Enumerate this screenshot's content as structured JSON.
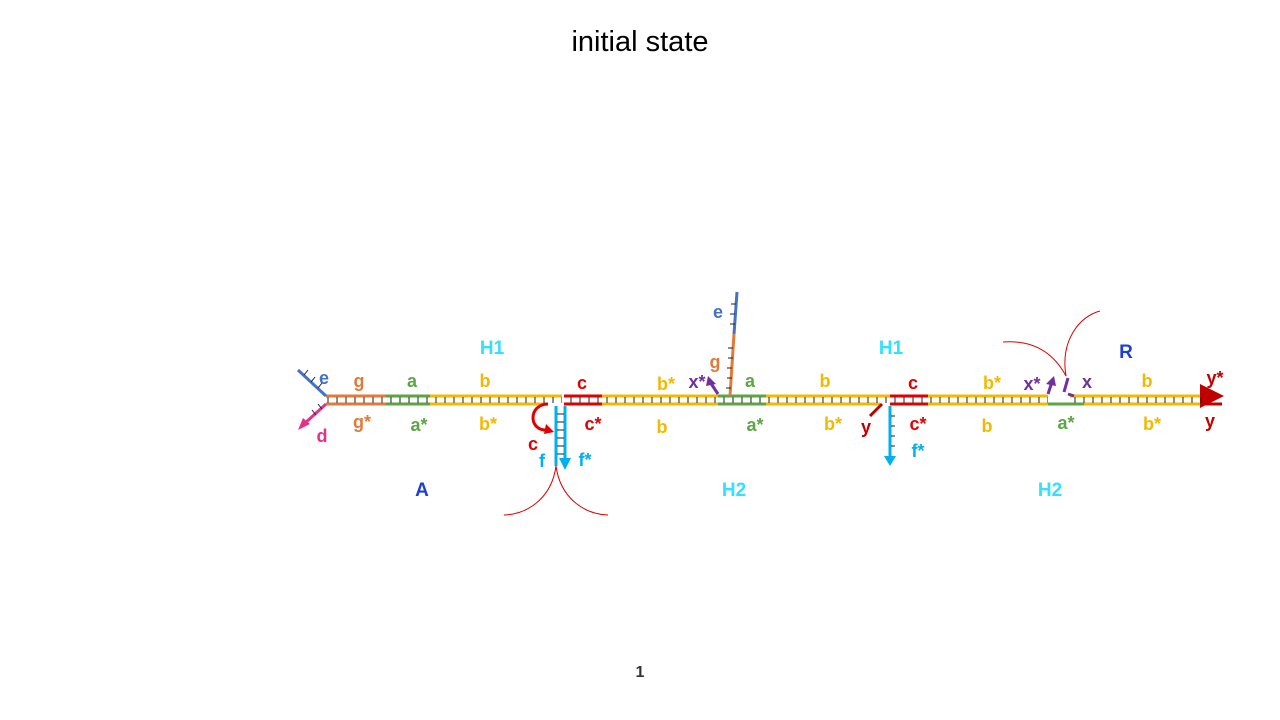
{
  "title": "initial state",
  "page_number": "1",
  "colors": {
    "orange_yellow": "#F5B800",
    "green": "#5BA642",
    "orange": "#E07B39",
    "red": "#E00000",
    "dark_red": "#C00000",
    "light_blue": "#00B0F0",
    "steel_blue": "#4472C4",
    "purple": "#7030A0",
    "pink": "#E8308A",
    "cyan": "#33E0FF",
    "blue": "#1F3FD0",
    "thin_red": "#E00000"
  },
  "complexes": {
    "H1_left": "H1",
    "H1_right": "H1",
    "A": "A",
    "H2_left": "H2",
    "H2_right": "H2",
    "R": "R"
  },
  "domains": {
    "e_left": "e",
    "d_left": "d",
    "g_top": "g",
    "g_star_bottom": "g*",
    "a_top_1": "a",
    "a_star_bottom_1": "a*",
    "b_top_1": "b",
    "b_star_bottom_1": "b*",
    "c_top_1": "c",
    "c_star_bottom_1": "c*",
    "c_loop": "c",
    "f_left": "f",
    "f_star": "f*",
    "b_star_top_2": "b*",
    "b_bottom_2": "b",
    "x_star_top_1": "x*",
    "e_branch": "e",
    "g_branch": "g",
    "a_top_2": "a",
    "a_star_bottom_2": "a*",
    "b_top_3": "b",
    "b_star_bottom_3": "b*",
    "c_top_2": "c",
    "c_star_bottom_2": "c*",
    "y_left": "y",
    "f_star_2": "f*",
    "b_star_top_4": "b*",
    "b_bottom_4": "b",
    "x_star_top_2": "x*",
    "x_top": "x",
    "a_star_bottom_3": "a*",
    "b_top_5": "b",
    "b_star_bottom_5": "b*",
    "y_star_top": "y*",
    "y_bottom": "y"
  }
}
